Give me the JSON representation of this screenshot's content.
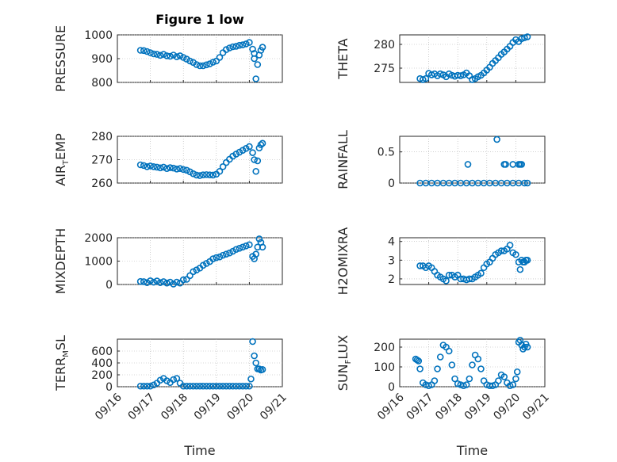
{
  "figure_title": "Figure 1 low",
  "x_label": "Time",
  "x_tick_labels": [
    "09/16",
    "09/17",
    "09/18",
    "09/19",
    "09/20",
    "09/21"
  ],
  "colors": {
    "marker": "#0072bd",
    "axis": "#262626",
    "grid": "#b0b0b0"
  },
  "chart_data": [
    {
      "type": "scatter",
      "ylabel": "PRESSURE",
      "ylim": [
        800,
        1000
      ],
      "yticks": [
        "800",
        "900",
        "1000"
      ],
      "xlim": [
        0,
        5
      ],
      "grid": true,
      "x": [
        0.7,
        0.8,
        0.9,
        1.0,
        1.1,
        1.2,
        1.3,
        1.4,
        1.5,
        1.6,
        1.7,
        1.8,
        1.9,
        2.0,
        2.1,
        2.2,
        2.3,
        2.4,
        2.5,
        2.6,
        2.7,
        2.8,
        2.9,
        3.0,
        3.1,
        3.2,
        3.3,
        3.4,
        3.5,
        3.6,
        3.7,
        3.8,
        3.9,
        4.0,
        4.1,
        4.15,
        4.15,
        4.2,
        4.25,
        4.3,
        4.35,
        4.4
      ],
      "y": [
        935,
        934,
        930,
        925,
        920,
        918,
        914,
        918,
        912,
        910,
        915,
        908,
        912,
        905,
        898,
        890,
        884,
        875,
        870,
        870,
        874,
        878,
        885,
        890,
        905,
        925,
        938,
        945,
        950,
        952,
        956,
        958,
        962,
        968,
        940,
        922,
        900,
        815,
        875,
        915,
        935,
        948
      ]
    },
    {
      "type": "scatter",
      "ylabel": "THETA",
      "ylim": [
        272,
        282
      ],
      "yticks": [
        "275",
        "280"
      ],
      "xlim": [
        0,
        5
      ],
      "grid": true,
      "x": [
        0.7,
        0.8,
        0.9,
        1.0,
        1.1,
        1.2,
        1.3,
        1.4,
        1.5,
        1.6,
        1.7,
        1.8,
        1.9,
        2.0,
        2.1,
        2.2,
        2.3,
        2.4,
        2.5,
        2.6,
        2.7,
        2.8,
        2.9,
        3.0,
        3.1,
        3.2,
        3.3,
        3.4,
        3.5,
        3.6,
        3.7,
        3.8,
        3.9,
        4.0,
        4.1,
        4.2,
        4.3,
        4.4
      ],
      "y": [
        272.8,
        272.6,
        272.8,
        273.9,
        273.6,
        273.8,
        273.4,
        273.8,
        273.6,
        273.2,
        273.8,
        273.5,
        273.3,
        273.5,
        273.4,
        273.6,
        274.0,
        273.4,
        272.6,
        272.8,
        273.2,
        273.5,
        274.0,
        274.6,
        275.2,
        276.0,
        276.6,
        277.2,
        277.9,
        278.4,
        279.0,
        279.6,
        280.4,
        281.0,
        280.6,
        281.2,
        281.4,
        281.6
      ]
    },
    {
      "type": "scatter",
      "ylabel": "AIR",
      "ylabel_sub": "T",
      "ylabel_tail": "EMP",
      "ylim": [
        260,
        280
      ],
      "yticks": [
        "260",
        "270",
        "280"
      ],
      "xlim": [
        0,
        5
      ],
      "grid": true,
      "x": [
        0.7,
        0.8,
        0.9,
        1.0,
        1.1,
        1.2,
        1.3,
        1.4,
        1.5,
        1.6,
        1.7,
        1.8,
        1.9,
        2.0,
        2.1,
        2.2,
        2.3,
        2.4,
        2.5,
        2.6,
        2.7,
        2.8,
        2.9,
        3.0,
        3.1,
        3.2,
        3.3,
        3.4,
        3.5,
        3.6,
        3.7,
        3.8,
        3.9,
        4.0,
        4.1,
        4.15,
        4.2,
        4.25,
        4.3,
        4.35,
        4.4
      ],
      "y": [
        267.8,
        267.5,
        267.0,
        267.3,
        267.0,
        266.8,
        266.5,
        266.8,
        266.2,
        266.6,
        266.4,
        266.0,
        266.2,
        265.8,
        265.5,
        264.8,
        264.0,
        263.4,
        263.2,
        263.5,
        263.6,
        263.5,
        263.4,
        263.8,
        265.0,
        267.0,
        268.8,
        270.2,
        271.5,
        272.4,
        273.2,
        274.0,
        274.8,
        275.6,
        273.0,
        270.0,
        265.0,
        269.5,
        275.0,
        276.4,
        277.0
      ]
    },
    {
      "type": "scatter",
      "ylabel": "RAINFALL",
      "ylim": [
        0,
        0.75
      ],
      "yticks": [
        "0",
        "0.5"
      ],
      "xlim": [
        0,
        5
      ],
      "grid": true,
      "x": [
        0.7,
        0.9,
        1.1,
        1.3,
        1.5,
        1.7,
        1.9,
        2.1,
        2.3,
        2.5,
        2.7,
        2.9,
        3.1,
        3.3,
        3.5,
        3.7,
        3.9,
        4.1,
        4.3,
        4.4,
        2.35,
        3.35,
        3.6,
        3.65,
        3.9,
        4.1,
        4.15,
        4.2
      ],
      "y": [
        0,
        0,
        0,
        0,
        0,
        0,
        0,
        0,
        0,
        0,
        0,
        0,
        0,
        0,
        0,
        0,
        0,
        0,
        0,
        0,
        0.3,
        0.7,
        0.3,
        0.3,
        0.3,
        0.3,
        0.3,
        0.3
      ]
    },
    {
      "type": "scatter",
      "ylabel": "MIXDEPTH",
      "ylim": [
        0,
        2000
      ],
      "yticks": [
        "0",
        "1000",
        "2000"
      ],
      "xlim": [
        0,
        5
      ],
      "grid": true,
      "x": [
        0.7,
        0.8,
        0.9,
        1.0,
        1.1,
        1.2,
        1.3,
        1.4,
        1.5,
        1.6,
        1.7,
        1.8,
        1.9,
        2.0,
        2.1,
        2.2,
        2.3,
        2.4,
        2.5,
        2.6,
        2.7,
        2.8,
        2.9,
        3.0,
        3.1,
        3.2,
        3.3,
        3.4,
        3.5,
        3.6,
        3.7,
        3.8,
        3.9,
        4.0,
        4.1,
        4.15,
        4.2,
        4.25,
        4.3,
        4.35,
        4.4
      ],
      "y": [
        130,
        120,
        80,
        160,
        100,
        150,
        80,
        120,
        60,
        100,
        20,
        100,
        60,
        200,
        220,
        380,
        550,
        620,
        700,
        820,
        900,
        980,
        1100,
        1150,
        1180,
        1250,
        1300,
        1350,
        1420,
        1500,
        1550,
        1600,
        1650,
        1700,
        1200,
        1100,
        1300,
        1600,
        1950,
        1800,
        1600
      ]
    },
    {
      "type": "scatter",
      "ylabel": "H2OMIXRA",
      "ylim": [
        1.7,
        4.2
      ],
      "yticks": [
        "2",
        "3",
        "4"
      ],
      "xlim": [
        0,
        5
      ],
      "grid": true,
      "x": [
        0.7,
        0.8,
        0.9,
        1.0,
        1.1,
        1.2,
        1.3,
        1.4,
        1.5,
        1.6,
        1.7,
        1.8,
        1.9,
        2.0,
        2.1,
        2.2,
        2.3,
        2.4,
        2.5,
        2.6,
        2.7,
        2.8,
        2.9,
        3.0,
        3.1,
        3.2,
        3.3,
        3.4,
        3.5,
        3.6,
        3.7,
        3.8,
        3.9,
        4.0,
        4.1,
        4.15,
        4.2,
        4.25,
        4.3,
        4.35,
        4.4
      ],
      "y": [
        2.7,
        2.7,
        2.6,
        2.7,
        2.6,
        2.4,
        2.2,
        2.1,
        2.0,
        1.9,
        2.2,
        2.2,
        2.1,
        2.2,
        2.0,
        2.0,
        1.95,
        2.0,
        2.0,
        2.1,
        2.2,
        2.3,
        2.6,
        2.8,
        2.9,
        3.1,
        3.3,
        3.4,
        3.5,
        3.5,
        3.6,
        3.8,
        3.4,
        3.3,
        2.9,
        2.5,
        3.0,
        2.9,
        2.9,
        3.0,
        3.0
      ]
    },
    {
      "type": "scatter",
      "ylabel": "TERR",
      "ylabel_sub": "M",
      "ylabel_tail": "SL",
      "ylim": [
        0,
        800
      ],
      "yticks": [
        "0",
        "200",
        "400",
        "600"
      ],
      "xlim": [
        0,
        5
      ],
      "grid": true,
      "x": [
        0.7,
        0.8,
        0.9,
        1.0,
        1.1,
        1.2,
        1.3,
        1.4,
        1.5,
        1.6,
        1.7,
        1.8,
        1.9,
        2.0,
        2.1,
        2.2,
        2.3,
        2.4,
        2.5,
        2.6,
        2.7,
        2.8,
        2.9,
        3.0,
        3.1,
        3.2,
        3.3,
        3.4,
        3.5,
        3.6,
        3.7,
        3.8,
        3.9,
        4.0,
        4.05,
        4.1,
        4.15,
        4.2,
        4.25,
        4.3,
        4.35,
        4.4
      ],
      "y": [
        10,
        10,
        10,
        10,
        30,
        60,
        110,
        140,
        100,
        70,
        120,
        140,
        60,
        10,
        10,
        10,
        10,
        10,
        10,
        10,
        10,
        10,
        10,
        10,
        10,
        10,
        10,
        10,
        10,
        10,
        10,
        10,
        10,
        10,
        130,
        760,
        520,
        400,
        300,
        300,
        280,
        290
      ]
    },
    {
      "type": "scatter",
      "ylabel": "SUN",
      "ylabel_sub": "F",
      "ylabel_tail": "LUX",
      "ylim": [
        0,
        240
      ],
      "yticks": [
        "0",
        "100",
        "200"
      ],
      "xlim": [
        0,
        5
      ],
      "grid": true,
      "x": [
        0.55,
        0.6,
        0.65,
        0.7,
        0.8,
        0.9,
        1.0,
        1.1,
        1.2,
        1.3,
        1.4,
        1.5,
        1.6,
        1.7,
        1.8,
        1.9,
        2.0,
        2.1,
        2.2,
        2.3,
        2.4,
        2.5,
        2.6,
        2.7,
        2.8,
        2.9,
        3.0,
        3.1,
        3.2,
        3.3,
        3.4,
        3.5,
        3.6,
        3.7,
        3.8,
        3.9,
        4.0,
        4.05,
        4.1,
        4.15,
        4.2,
        4.25,
        4.3,
        4.35,
        4.4
      ],
      "y": [
        140,
        135,
        130,
        90,
        20,
        10,
        5,
        10,
        30,
        90,
        150,
        210,
        200,
        180,
        110,
        40,
        15,
        10,
        5,
        10,
        40,
        110,
        160,
        140,
        90,
        30,
        10,
        5,
        5,
        10,
        30,
        60,
        50,
        20,
        5,
        10,
        40,
        75,
        225,
        235,
        210,
        190,
        200,
        215,
        200
      ]
    }
  ]
}
